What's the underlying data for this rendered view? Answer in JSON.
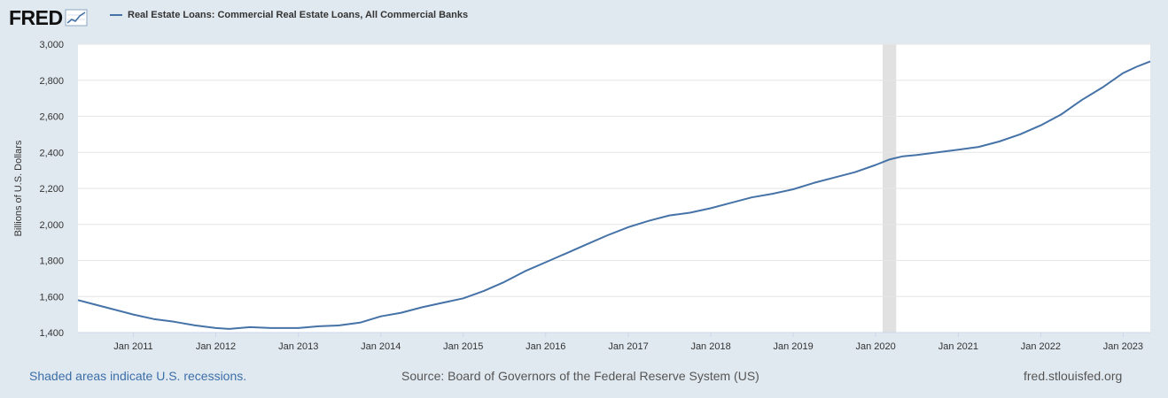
{
  "header": {
    "logo_text": "FRED",
    "logo_icon": "chart-line-icon"
  },
  "footer": {
    "recession_note": "Shaded areas indicate U.S. recessions.",
    "source": "Source: Board of Governors of the Federal Reserve System (US)",
    "site": "fred.stlouisfed.org"
  },
  "colors": {
    "background": "#e1e9f0",
    "plot_background": "#ffffff",
    "series": "#4572a7",
    "recession": "#e1e1e1",
    "grid": "#e6e6e6"
  },
  "chart_data": {
    "type": "line",
    "title": "",
    "xlabel": "",
    "ylabel": "Billions of U.S. Dollars",
    "xlim": [
      "2010-05-01",
      "2023-05-01"
    ],
    "ylim": [
      1400,
      3000
    ],
    "yticks": [
      1400,
      1600,
      1800,
      2000,
      2200,
      2400,
      2600,
      2800,
      3000
    ],
    "ytick_labels": [
      "1,400",
      "1,600",
      "1,800",
      "2,000",
      "2,200",
      "2,400",
      "2,600",
      "2,800",
      "3,000"
    ],
    "xticks": [
      "2011-01-01",
      "2012-01-01",
      "2013-01-01",
      "2014-01-01",
      "2015-01-01",
      "2016-01-01",
      "2017-01-01",
      "2018-01-01",
      "2019-01-01",
      "2020-01-01",
      "2021-01-01",
      "2022-01-01",
      "2023-01-01"
    ],
    "xtick_labels": [
      "Jan 2011",
      "Jan 2012",
      "Jan 2013",
      "Jan 2014",
      "Jan 2015",
      "Jan 2016",
      "Jan 2017",
      "Jan 2018",
      "Jan 2019",
      "Jan 2020",
      "Jan 2021",
      "Jan 2022",
      "Jan 2023"
    ],
    "grid": true,
    "legend": "top-left",
    "recessions": [
      [
        "2020-02-01",
        "2020-04-01"
      ]
    ],
    "series": [
      {
        "name": "Real Estate Loans: Commercial Real Estate Loans, All Commercial Banks",
        "x": [
          "2010-05-01",
          "2010-07-01",
          "2010-10-01",
          "2011-01-01",
          "2011-04-01",
          "2011-07-01",
          "2011-10-01",
          "2012-01-01",
          "2012-03-01",
          "2012-06-01",
          "2012-09-01",
          "2013-01-01",
          "2013-04-01",
          "2013-07-01",
          "2013-10-01",
          "2014-01-01",
          "2014-04-01",
          "2014-07-01",
          "2014-10-01",
          "2015-01-01",
          "2015-04-01",
          "2015-07-01",
          "2015-10-01",
          "2016-01-01",
          "2016-04-01",
          "2016-07-01",
          "2016-10-01",
          "2017-01-01",
          "2017-04-01",
          "2017-07-01",
          "2017-10-01",
          "2018-01-01",
          "2018-04-01",
          "2018-07-01",
          "2018-10-01",
          "2019-01-01",
          "2019-04-01",
          "2019-07-01",
          "2019-10-01",
          "2020-01-01",
          "2020-03-01",
          "2020-05-01",
          "2020-07-01",
          "2020-10-01",
          "2021-01-01",
          "2021-04-01",
          "2021-07-01",
          "2021-10-01",
          "2022-01-01",
          "2022-04-01",
          "2022-07-01",
          "2022-10-01",
          "2023-01-01",
          "2023-03-01",
          "2023-05-01"
        ],
        "values": [
          1580,
          1560,
          1530,
          1500,
          1475,
          1460,
          1440,
          1425,
          1420,
          1430,
          1425,
          1425,
          1435,
          1440,
          1455,
          1490,
          1510,
          1540,
          1565,
          1590,
          1630,
          1680,
          1740,
          1790,
          1840,
          1890,
          1940,
          1985,
          2020,
          2050,
          2065,
          2090,
          2120,
          2150,
          2170,
          2195,
          2230,
          2260,
          2290,
          2330,
          2360,
          2378,
          2385,
          2400,
          2415,
          2430,
          2460,
          2500,
          2550,
          2610,
          2690,
          2760,
          2840,
          2875,
          2905
        ]
      }
    ]
  }
}
